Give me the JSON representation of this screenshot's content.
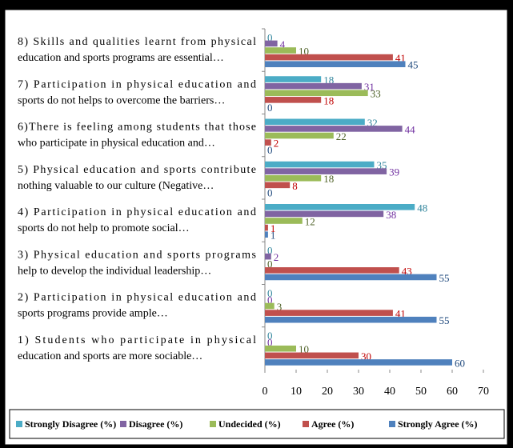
{
  "chart_data": {
    "type": "bar",
    "orientation": "horizontal",
    "categories": [
      [
        "1) Students who participate in physical",
        "education and sports are more sociable…"
      ],
      [
        "2) Participation in physical education and",
        "sports programs provide ample…"
      ],
      [
        "3) Physical education and sports programs",
        "help to develop the individual leadership…"
      ],
      [
        "4) Participation in physical education and",
        "sports do not help to promote social…"
      ],
      [
        "5) Physical education and sports contribute",
        "nothing valuable to our culture (Negative…"
      ],
      [
        "6)There is feeling among students that those",
        "who participate in physical education and…"
      ],
      [
        "7) Participation in physical education and",
        "sports do not helps to overcome the barriers…"
      ],
      [
        "8) Skills and qualities learnt from physical",
        "education and sports programs are essential…"
      ]
    ],
    "series": [
      {
        "name": "Strongly Disagree (%)",
        "color": "#4bacc6",
        "label_color": "#31859c",
        "values": [
          0,
          0,
          0,
          48,
          35,
          32,
          18,
          0
        ]
      },
      {
        "name": "Disagree (%)",
        "color": "#8064a2",
        "label_color": "#7030a0",
        "values": [
          0,
          0,
          2,
          38,
          39,
          44,
          31,
          4
        ]
      },
      {
        "name": "Undecided (%)",
        "color": "#9bbb59",
        "label_color": "#4f6228",
        "values": [
          10,
          3,
          0,
          12,
          18,
          22,
          33,
          10
        ]
      },
      {
        "name": "Agree (%)",
        "color": "#c0504d",
        "label_color": "#c00000",
        "values": [
          30,
          41,
          43,
          1,
          8,
          2,
          18,
          41
        ]
      },
      {
        "name": "Strongly Agree (%)",
        "color": "#4f81bd",
        "label_color": "#1f497d",
        "values": [
          60,
          55,
          55,
          1,
          0,
          0,
          0,
          45
        ]
      }
    ],
    "xlim": [
      0,
      70
    ],
    "xticks": [
      0,
      10,
      20,
      30,
      40,
      50,
      60,
      70
    ],
    "legend": "bottom"
  }
}
